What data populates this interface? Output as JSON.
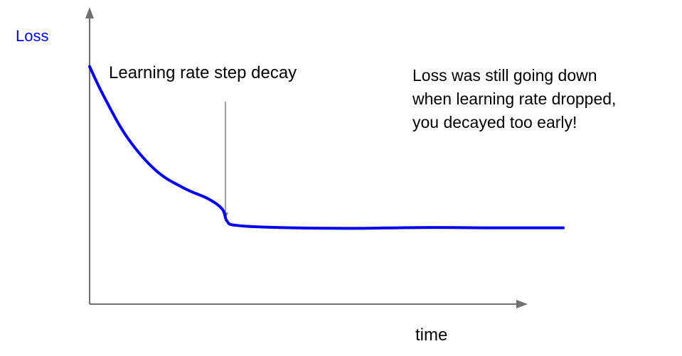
{
  "chart_data": {
    "type": "line",
    "ylabel": "Loss",
    "xlabel": "time",
    "annotation_arrow_label": "Learning rate step decay",
    "annotation_note": [
      "Loss was still going down",
      "when learning rate dropped,",
      "you decayed too early!"
    ],
    "series": [
      {
        "color": "#0000ee",
        "x": [
          0.0,
          0.03,
          0.08,
          0.14,
          0.2,
          0.25,
          0.28,
          0.29,
          0.31,
          0.4,
          0.55,
          0.7,
          0.85,
          1.0
        ],
        "y": [
          0.8,
          0.7,
          0.56,
          0.45,
          0.39,
          0.355,
          0.32,
          0.28,
          0.265,
          0.258,
          0.255,
          0.258,
          0.257,
          0.257
        ]
      }
    ],
    "annotation_x": 0.29,
    "axis_color": "#707070",
    "label_color": "#0000ee",
    "text_color": "#000000",
    "grid": false,
    "legend": "none"
  }
}
